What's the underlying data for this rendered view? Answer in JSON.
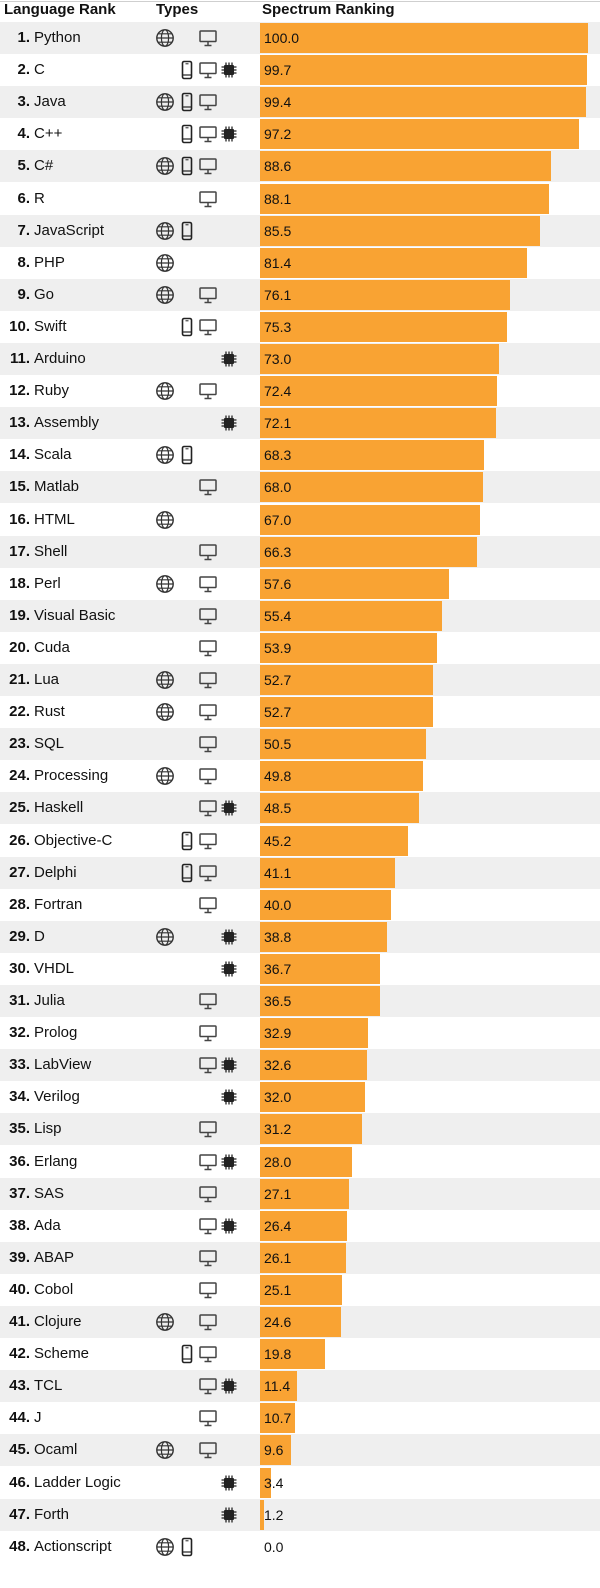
{
  "columns": {
    "rank": "Language Rank",
    "types": "Types",
    "spectrum": "Spectrum Ranking"
  },
  "colors": {
    "bar": "#f9a333",
    "stripe": "#efefef"
  },
  "icon_names": {
    "web": "globe-icon",
    "mobile": "mobile-icon",
    "desktop": "desktop-icon",
    "embedded": "chip-icon"
  },
  "chart_data": {
    "type": "bar",
    "orientation": "horizontal",
    "title": "Spectrum Ranking",
    "xlim": [
      0,
      100
    ],
    "rows": [
      {
        "rank": "1.",
        "name": "Python",
        "value": 100.0,
        "label": "100.0",
        "types": [
          "web",
          "desktop"
        ]
      },
      {
        "rank": "2.",
        "name": "C",
        "value": 99.7,
        "label": "99.7",
        "types": [
          "mobile",
          "desktop",
          "embedded"
        ]
      },
      {
        "rank": "3.",
        "name": "Java",
        "value": 99.4,
        "label": "99.4",
        "types": [
          "web",
          "mobile",
          "desktop"
        ]
      },
      {
        "rank": "4.",
        "name": "C++",
        "value": 97.2,
        "label": "97.2",
        "types": [
          "mobile",
          "desktop",
          "embedded"
        ]
      },
      {
        "rank": "5.",
        "name": "C#",
        "value": 88.6,
        "label": "88.6",
        "types": [
          "web",
          "mobile",
          "desktop"
        ]
      },
      {
        "rank": "6.",
        "name": "R",
        "value": 88.1,
        "label": "88.1",
        "types": [
          "desktop"
        ]
      },
      {
        "rank": "7.",
        "name": "JavaScript",
        "value": 85.5,
        "label": "85.5",
        "types": [
          "web",
          "mobile"
        ]
      },
      {
        "rank": "8.",
        "name": "PHP",
        "value": 81.4,
        "label": "81.4",
        "types": [
          "web"
        ]
      },
      {
        "rank": "9.",
        "name": "Go",
        "value": 76.1,
        "label": "76.1",
        "types": [
          "web",
          "desktop"
        ]
      },
      {
        "rank": "10.",
        "name": "Swift",
        "value": 75.3,
        "label": "75.3",
        "types": [
          "mobile",
          "desktop"
        ]
      },
      {
        "rank": "11.",
        "name": "Arduino",
        "value": 73.0,
        "label": "73.0",
        "types": [
          "embedded"
        ]
      },
      {
        "rank": "12.",
        "name": "Ruby",
        "value": 72.4,
        "label": "72.4",
        "types": [
          "web",
          "desktop"
        ]
      },
      {
        "rank": "13.",
        "name": "Assembly",
        "value": 72.1,
        "label": "72.1",
        "types": [
          "embedded"
        ]
      },
      {
        "rank": "14.",
        "name": "Scala",
        "value": 68.3,
        "label": "68.3",
        "types": [
          "web",
          "mobile"
        ]
      },
      {
        "rank": "15.",
        "name": "Matlab",
        "value": 68.0,
        "label": "68.0",
        "types": [
          "desktop"
        ]
      },
      {
        "rank": "16.",
        "name": "HTML",
        "value": 67.0,
        "label": "67.0",
        "types": [
          "web"
        ]
      },
      {
        "rank": "17.",
        "name": "Shell",
        "value": 66.3,
        "label": "66.3",
        "types": [
          "desktop"
        ]
      },
      {
        "rank": "18.",
        "name": "Perl",
        "value": 57.6,
        "label": "57.6",
        "types": [
          "web",
          "desktop"
        ]
      },
      {
        "rank": "19.",
        "name": "Visual Basic",
        "value": 55.4,
        "label": "55.4",
        "types": [
          "desktop"
        ]
      },
      {
        "rank": "20.",
        "name": "Cuda",
        "value": 53.9,
        "label": "53.9",
        "types": [
          "desktop"
        ]
      },
      {
        "rank": "21.",
        "name": "Lua",
        "value": 52.7,
        "label": "52.7",
        "types": [
          "web",
          "desktop"
        ]
      },
      {
        "rank": "22.",
        "name": "Rust",
        "value": 52.7,
        "label": "52.7",
        "types": [
          "web",
          "desktop"
        ]
      },
      {
        "rank": "23.",
        "name": "SQL",
        "value": 50.5,
        "label": "50.5",
        "types": [
          "desktop"
        ]
      },
      {
        "rank": "24.",
        "name": "Processing",
        "value": 49.8,
        "label": "49.8",
        "types": [
          "web",
          "desktop"
        ]
      },
      {
        "rank": "25.",
        "name": "Haskell",
        "value": 48.5,
        "label": "48.5",
        "types": [
          "desktop",
          "embedded"
        ]
      },
      {
        "rank": "26.",
        "name": "Objective-C",
        "value": 45.2,
        "label": "45.2",
        "types": [
          "mobile",
          "desktop"
        ]
      },
      {
        "rank": "27.",
        "name": "Delphi",
        "value": 41.1,
        "label": "41.1",
        "types": [
          "mobile",
          "desktop"
        ]
      },
      {
        "rank": "28.",
        "name": "Fortran",
        "value": 40.0,
        "label": "40.0",
        "types": [
          "desktop"
        ]
      },
      {
        "rank": "29.",
        "name": "D",
        "value": 38.8,
        "label": "38.8",
        "types": [
          "web",
          "embedded"
        ]
      },
      {
        "rank": "30.",
        "name": "VHDL",
        "value": 36.7,
        "label": "36.7",
        "types": [
          "embedded"
        ]
      },
      {
        "rank": "31.",
        "name": "Julia",
        "value": 36.5,
        "label": "36.5",
        "types": [
          "desktop"
        ]
      },
      {
        "rank": "32.",
        "name": "Prolog",
        "value": 32.9,
        "label": "32.9",
        "types": [
          "desktop"
        ]
      },
      {
        "rank": "33.",
        "name": "LabView",
        "value": 32.6,
        "label": "32.6",
        "types": [
          "desktop",
          "embedded"
        ]
      },
      {
        "rank": "34.",
        "name": "Verilog",
        "value": 32.0,
        "label": "32.0",
        "types": [
          "embedded"
        ]
      },
      {
        "rank": "35.",
        "name": "Lisp",
        "value": 31.2,
        "label": "31.2",
        "types": [
          "desktop"
        ]
      },
      {
        "rank": "36.",
        "name": "Erlang",
        "value": 28.0,
        "label": "28.0",
        "types": [
          "desktop",
          "embedded"
        ]
      },
      {
        "rank": "37.",
        "name": "SAS",
        "value": 27.1,
        "label": "27.1",
        "types": [
          "desktop"
        ]
      },
      {
        "rank": "38.",
        "name": "Ada",
        "value": 26.4,
        "label": "26.4",
        "types": [
          "desktop",
          "embedded"
        ]
      },
      {
        "rank": "39.",
        "name": "ABAP",
        "value": 26.1,
        "label": "26.1",
        "types": [
          "desktop"
        ]
      },
      {
        "rank": "40.",
        "name": "Cobol",
        "value": 25.1,
        "label": "25.1",
        "types": [
          "desktop"
        ]
      },
      {
        "rank": "41.",
        "name": "Clojure",
        "value": 24.6,
        "label": "24.6",
        "types": [
          "web",
          "desktop"
        ]
      },
      {
        "rank": "42.",
        "name": "Scheme",
        "value": 19.8,
        "label": "19.8",
        "types": [
          "mobile",
          "desktop"
        ]
      },
      {
        "rank": "43.",
        "name": "TCL",
        "value": 11.4,
        "label": "11.4",
        "types": [
          "desktop",
          "embedded"
        ]
      },
      {
        "rank": "44.",
        "name": "J",
        "value": 10.7,
        "label": "10.7",
        "types": [
          "desktop"
        ]
      },
      {
        "rank": "45.",
        "name": "Ocaml",
        "value": 9.6,
        "label": "9.6",
        "types": [
          "web",
          "desktop"
        ]
      },
      {
        "rank": "46.",
        "name": "Ladder Logic",
        "value": 3.4,
        "label": "3.4",
        "types": [
          "embedded"
        ]
      },
      {
        "rank": "47.",
        "name": "Forth",
        "value": 1.2,
        "label": "1.2",
        "types": [
          "embedded"
        ]
      },
      {
        "rank": "48.",
        "name": "Actionscript",
        "value": 0.0,
        "label": "0.0",
        "types": [
          "web",
          "mobile"
        ]
      }
    ]
  }
}
